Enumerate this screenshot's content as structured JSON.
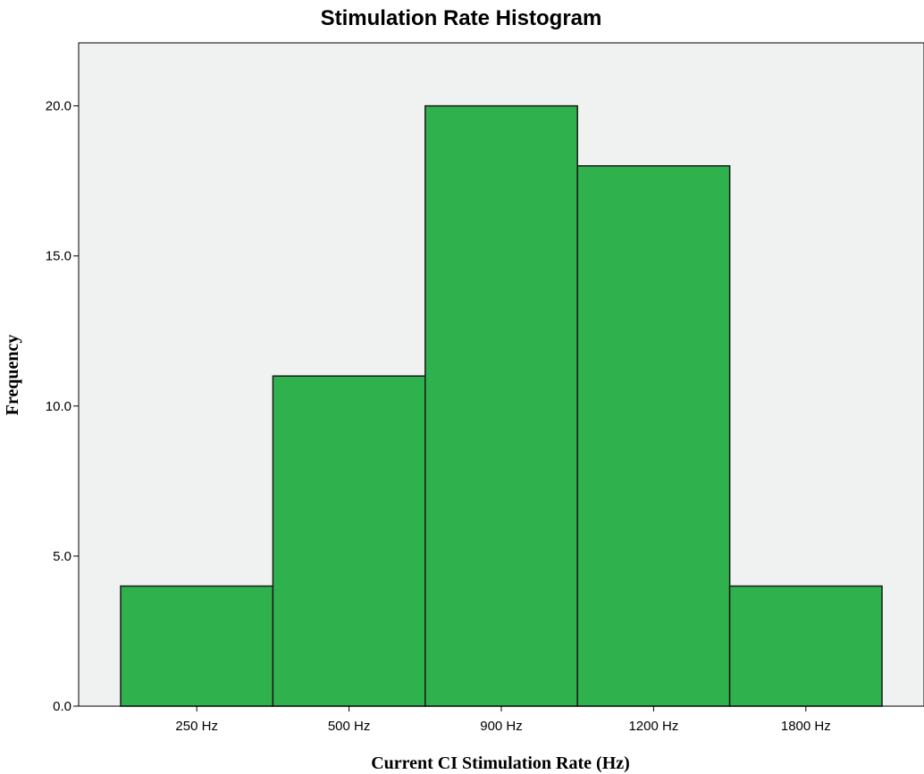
{
  "chart_data": {
    "type": "bar",
    "title": "Stimulation Rate Histogram",
    "xlabel": "Current CI Stimulation Rate (Hz)",
    "ylabel": "Frequency",
    "categories": [
      "250 Hz",
      "500 Hz",
      "900 Hz",
      "1200 Hz",
      "1800 Hz"
    ],
    "values": [
      4,
      11,
      20,
      18,
      4
    ],
    "ylim": [
      0,
      22.1
    ],
    "yticks": [
      "0.0",
      "5.0",
      "10.0",
      "15.0",
      "20.0"
    ],
    "grid": false,
    "legend": "none",
    "colors": {
      "bar_fill": "#2fb14e",
      "bar_stroke": "#1a1a1a",
      "plot_background": "#f0f1f1",
      "axis": "#000000"
    }
  }
}
